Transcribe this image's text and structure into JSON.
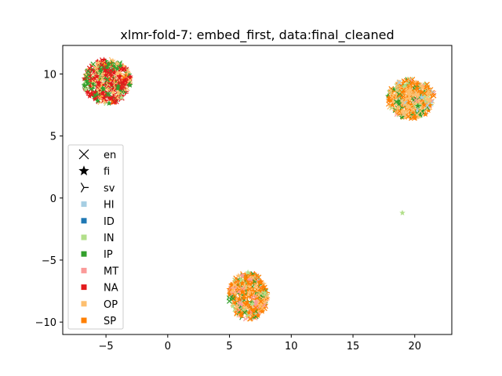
{
  "chart_data": {
    "type": "scatter",
    "title": "xlmr-fold-7: embed_first, data:final_cleaned",
    "xlabel": "",
    "ylabel": "",
    "xlim": [
      -8.5,
      23
    ],
    "ylim": [
      -11,
      12.3
    ],
    "xticks": [
      -5,
      0,
      5,
      10,
      15,
      20
    ],
    "yticks": [
      -10,
      -5,
      0,
      5,
      10
    ],
    "xtick_labels": [
      "−5",
      "0",
      "5",
      "10",
      "15",
      "20"
    ],
    "ytick_labels": [
      "−10",
      "−5",
      "0",
      "5",
      "10"
    ],
    "grid": false,
    "legend_position": "center-left",
    "legend": {
      "markers": [
        {
          "label": "en",
          "symbol": "x-icon"
        },
        {
          "label": "fi",
          "symbol": "star-icon"
        },
        {
          "label": "sv",
          "symbol": "tri-left-icon"
        }
      ],
      "classes": [
        {
          "label": "HI",
          "color": "#a6cee3"
        },
        {
          "label": "ID",
          "color": "#1f78b4"
        },
        {
          "label": "IN",
          "color": "#b2df8a"
        },
        {
          "label": "IP",
          "color": "#33a02c"
        },
        {
          "label": "MT",
          "color": "#fb9a99"
        },
        {
          "label": "NA",
          "color": "#e31a1c"
        },
        {
          "label": "OP",
          "color": "#fdbf6f"
        },
        {
          "label": "SP",
          "color": "#ff7f00"
        }
      ]
    },
    "clusters": [
      {
        "name": "top-left",
        "cx": -4.9,
        "cy": 9.4,
        "rx": 1.9,
        "ry": 1.8,
        "n": 420,
        "mix": {
          "NA": 0.4,
          "OP": 0.3,
          "IP": 0.2,
          "IN": 0.04,
          "SP": 0.04,
          "MT": 0.02
        }
      },
      {
        "name": "top-right",
        "cx": 19.7,
        "cy": 8.0,
        "rx": 1.9,
        "ry": 1.6,
        "n": 420,
        "mix": {
          "OP": 0.34,
          "SP": 0.34,
          "IP": 0.14,
          "IN": 0.08,
          "HI": 0.06,
          "MT": 0.04
        }
      },
      {
        "name": "bottom",
        "cx": 6.5,
        "cy": -7.9,
        "rx": 1.6,
        "ry": 1.9,
        "n": 420,
        "mix": {
          "SP": 0.4,
          "OP": 0.22,
          "IP": 0.16,
          "IN": 0.1,
          "MT": 0.12
        }
      }
    ],
    "outliers": [
      {
        "x": 19.0,
        "y": -1.2,
        "class": "IN",
        "lang": "fi"
      }
    ]
  }
}
